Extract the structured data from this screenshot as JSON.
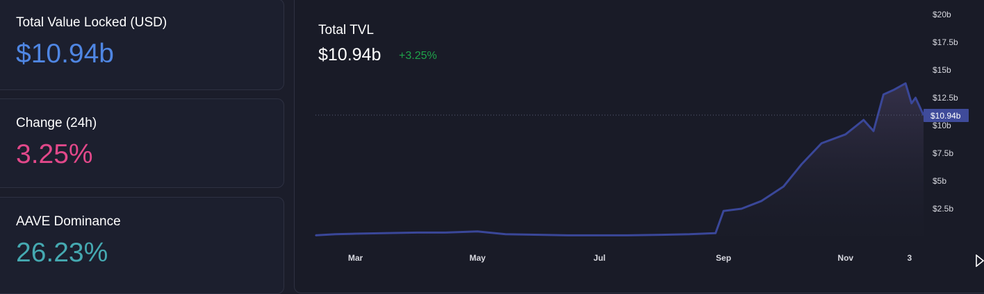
{
  "stats": {
    "tvl_label": "Total Value Locked (USD)",
    "tvl_value": "$10.94b",
    "change_label": "Change (24h)",
    "change_value": "3.25%",
    "dominance_label": "AAVE Dominance",
    "dominance_value": "26.23%"
  },
  "colors": {
    "tvl": "#4f86e3",
    "change": "#e2488a",
    "dominance": "#45a9b1",
    "line": "#3a4799",
    "positive": "#1fa34a"
  },
  "chart": {
    "title": "Total TVL",
    "current_value": "$10.94b",
    "change": "+3.25%"
  },
  "chart_data": {
    "type": "area",
    "title": "Total TVL",
    "xlabel": "",
    "ylabel": "",
    "ylim": [
      0,
      20
    ],
    "x_ticks": [
      "Mar",
      "May",
      "Jul",
      "Sep",
      "Nov",
      "3"
    ],
    "y_ticks": [
      "$20b",
      "$17.5b",
      "$15b",
      "$12.5b",
      "$10b",
      "$7.5b",
      "$5b",
      "$2.5b"
    ],
    "y_tick_values": [
      20,
      17.5,
      15,
      12.5,
      10,
      7.5,
      5,
      2.5
    ],
    "current_label": "$10.94b",
    "current_value": 10.94,
    "series": [
      {
        "x": [
          "Feb 10",
          "Feb 20",
          "Mar 1",
          "Mar 15",
          "Apr 1",
          "Apr 15",
          "May 1",
          "May 15",
          "Jun 1",
          "Jun 15",
          "Jul 1",
          "Jul 15",
          "Aug 1",
          "Aug 15",
          "Aug 28",
          "Sep 1",
          "Sep 10",
          "Sep 20",
          "Oct 1",
          "Oct 10",
          "Oct 20",
          "Nov 1",
          "Nov 10",
          "Nov 15",
          "Nov 20",
          "Nov 25",
          "Dec 1",
          "Dec 4",
          "Dec 6",
          "Dec 10"
        ],
        "values": [
          0.1,
          0.2,
          0.25,
          0.3,
          0.35,
          0.35,
          0.45,
          0.2,
          0.15,
          0.1,
          0.1,
          0.1,
          0.15,
          0.2,
          0.3,
          2.3,
          2.5,
          3.2,
          4.5,
          6.5,
          8.4,
          9.2,
          10.5,
          9.5,
          12.8,
          13.2,
          13.8,
          12.0,
          12.5,
          10.94
        ]
      }
    ]
  }
}
